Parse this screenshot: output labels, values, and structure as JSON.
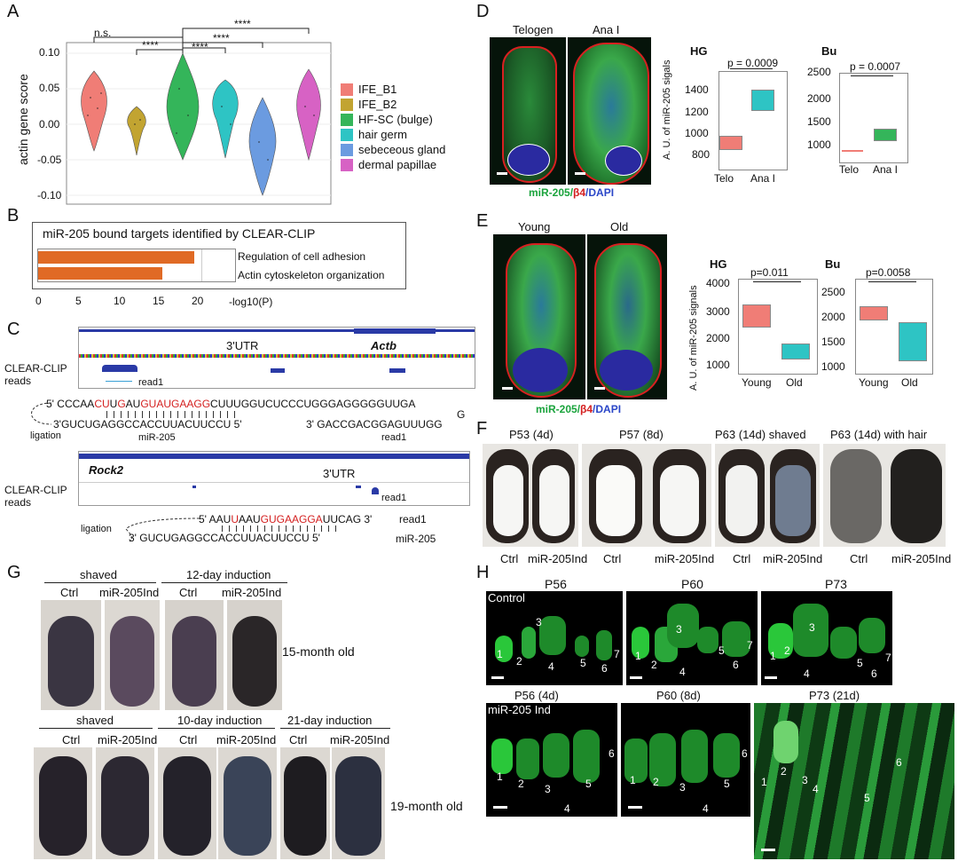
{
  "panel_labels": {
    "A": "A",
    "B": "B",
    "C": "C",
    "D": "D",
    "E": "E",
    "F": "F",
    "G": "G",
    "H": "H"
  },
  "panelA": {
    "ylabel": "actin gene score",
    "yticks": [
      "0.10",
      "0.05",
      "0.00",
      "-0.05",
      "-0.10"
    ],
    "sig": [
      "n.s.",
      "****",
      "****",
      "****",
      "****"
    ],
    "legend": [
      "IFE_B1",
      "IFE_B2",
      "HF-SC (bulge)",
      "hair germ",
      "sebeceous gland",
      "dermal papillae"
    ],
    "colors": [
      "#f07d76",
      "#c2a431",
      "#34b55a",
      "#2ec4c4",
      "#6b9be0",
      "#d762c4"
    ]
  },
  "panelB": {
    "title": "miR-205 bound targets identified by CLEAR-CLIP",
    "terms": [
      "Regulation of cell adhesion",
      "Actin cytoskeleton organization"
    ],
    "xticks": [
      "0",
      "5",
      "10",
      "15",
      "20"
    ],
    "xlabel": "-log10(P)",
    "bar_color": "#e06a25"
  },
  "panelC": {
    "top_label": "3'UTR",
    "gene1": "Actb",
    "track_label1": "CLEAR-CLIP",
    "track_label2": "reads",
    "read1": "read1",
    "seq_top_prefix": "5' CCCAA",
    "seq_top_p1": "CU",
    "seq_top_p2": "U",
    "seq_top_p3": "G",
    "seq_top_p4": "AU",
    "seq_top_p5": "GU",
    "seq_top_p6": "AUGAAGG",
    "seq_top_suffix": "CUUUGGUCUCCCUGGGAGGGGGUUGA",
    "seq_top_end": "G",
    "seq_mir": "3'GUCUGAGGCCACCUUACUUCCU 5'",
    "seq_read": "3' GACCGACGGAGUUUGG",
    "ligation": "ligation",
    "mir_label": "miR-205",
    "read_label": "read1",
    "gene2": "Rock2",
    "utr2": "3'UTR",
    "seq2_prefix": "5' AAU",
    "seq2_p1": "U",
    "seq2_p2": "AAU",
    "seq2_p3": "GUGAAGGA",
    "seq2_suffix": "UUCAG 3'",
    "seq2_read": "read1",
    "seq2_mir": "3' GUCUGAGGCCACCUUACUUCCU 5'",
    "seq2_mir_label": "miR-205"
  },
  "panelD": {
    "col1": "Telogen",
    "col2": "Ana I",
    "stain_green": "miR-205/",
    "stain_red": "β4",
    "stain_blue": "/DAPI",
    "ylabel": "A. U. of miR-205 sigals",
    "hg_title": "HG",
    "hg_p": "p = 0.0009",
    "hg_yticks": [
      "1400",
      "1200",
      "1000",
      "800"
    ],
    "bu_title": "Bu",
    "bu_p": "p = 0.0007",
    "bu_yticks": [
      "2500",
      "2000",
      "1500",
      "1000"
    ],
    "x1": "Telo",
    "x2": "Ana I"
  },
  "panelE": {
    "col1": "Young",
    "col2": "Old",
    "stain_green": "miR-205/",
    "stain_red": "β4",
    "stain_blue": "/DAPI",
    "ylabel": "A. U. of miR-205 signals",
    "hg_title": "HG",
    "hg_p": "p=0.011",
    "hg_yticks": [
      "4000",
      "3000",
      "2000",
      "1000"
    ],
    "bu_title": "Bu",
    "bu_p": "p=0.0058",
    "bu_yticks": [
      "2500",
      "2000",
      "1500",
      "1000"
    ],
    "x1": "Young",
    "x2": "Old"
  },
  "panelF": {
    "headers": [
      "P53 (4d)",
      "P57 (8d)",
      "P63 (14d) shaved",
      "P63 (14d) with hair"
    ],
    "labels": [
      "Ctrl",
      "miR-205Ind",
      "Ctrl",
      "miR-205Ind",
      "Ctrl",
      "miR-205Ind",
      "Ctrl",
      "miR-205Ind"
    ]
  },
  "panelG": {
    "h1": "shaved",
    "h2": "12-day induction",
    "h3": "shaved",
    "h4": "10-day induction",
    "h5": "21-day induction",
    "ctrl": "Ctrl",
    "ind": "miR-205Ind",
    "age1": "15-month old",
    "age2": "19-month old"
  },
  "panelH": {
    "top": [
      "P56",
      "P60",
      "P73"
    ],
    "bottom": [
      "P56 (4d)",
      "P60 (8d)",
      "P73 (21d)"
    ],
    "control": "Control",
    "ind": "miR-205 Ind",
    "nums": [
      "1",
      "2",
      "3",
      "4",
      "5",
      "6",
      "7"
    ]
  }
}
